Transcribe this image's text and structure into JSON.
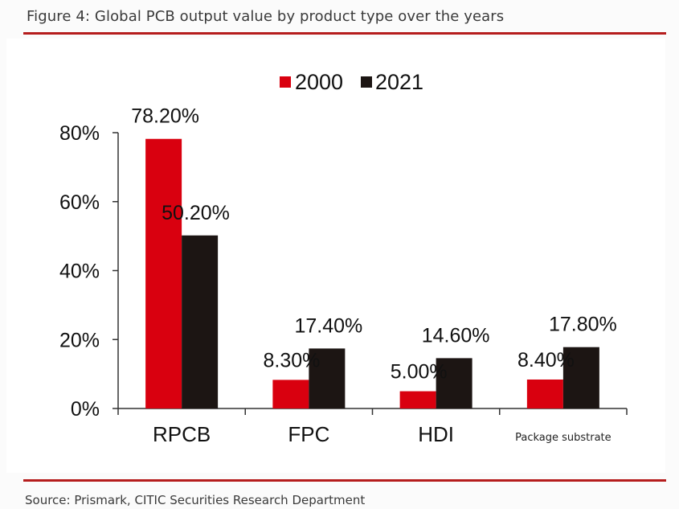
{
  "figure": {
    "title": "Figure 4: Global PCB output value by product type over the years",
    "source": "Source: Prismark, CITIC Securities Research Department"
  },
  "colors": {
    "series_2000": "#d9000f",
    "series_2021": "#1c1513",
    "rule": "#b51d1d",
    "axis": "#333333"
  },
  "chart_data": {
    "type": "bar",
    "title": "",
    "xlabel": "",
    "ylabel": "",
    "categories": [
      "RPCB",
      "FPC",
      "HDI",
      "Package substrate"
    ],
    "series": [
      {
        "name": "2000",
        "values": [
          78.2,
          8.3,
          5.0,
          8.4
        ],
        "labels": [
          "78.20%",
          "8.30%",
          "5.00%",
          "8.40%"
        ]
      },
      {
        "name": "2021",
        "values": [
          50.2,
          17.4,
          14.6,
          17.8
        ],
        "labels": [
          "50.20%",
          "17.40%",
          "14.60%",
          "17.80%"
        ]
      }
    ],
    "ylim": [
      0,
      80
    ],
    "yticks": [
      0,
      20,
      40,
      60,
      80
    ],
    "ytick_labels": [
      "0%",
      "20%",
      "40%",
      "60%",
      "80%"
    ],
    "grid": false,
    "legend": {
      "entries": [
        "2000",
        "2021"
      ],
      "placement": "top-center"
    },
    "unit": "%"
  }
}
